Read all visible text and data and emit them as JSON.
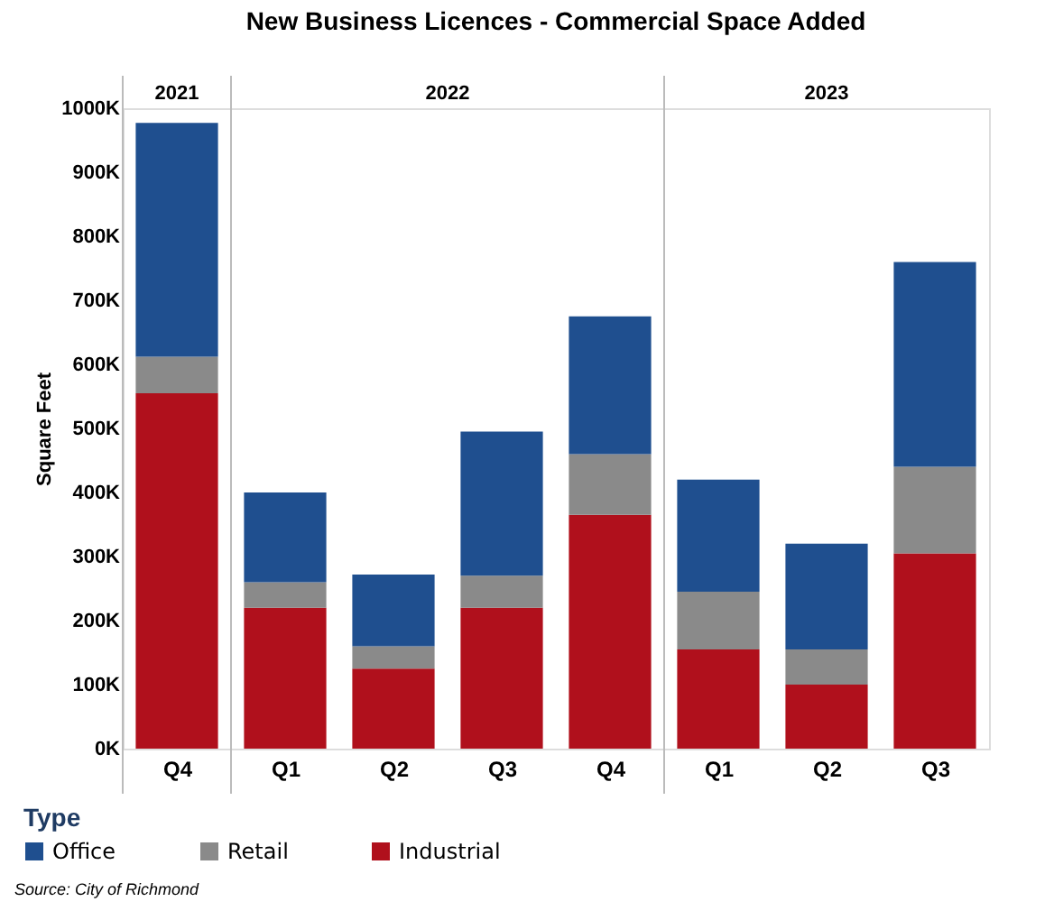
{
  "chart_data": {
    "type": "bar",
    "title": "New Business Licences - Commercial Space Added",
    "ylabel": "Square Feet",
    "legend_title": "Type",
    "categories": [
      "Q4",
      "Q1",
      "Q2",
      "Q3",
      "Q4",
      "Q1",
      "Q2",
      "Q3"
    ],
    "series": [
      {
        "name": "Industrial",
        "color": "#b0101c",
        "values": [
          555,
          220,
          125,
          220,
          365,
          155,
          100,
          305
        ]
      },
      {
        "name": "Retail",
        "color": "#8a8a8a",
        "values": [
          57,
          40,
          35,
          50,
          95,
          90,
          55,
          135
        ]
      },
      {
        "name": "Office",
        "color": "#1f4f8f",
        "values": [
          365,
          140,
          112,
          225,
          215,
          175,
          165,
          320
        ]
      }
    ],
    "stacked": true,
    "ylim": [
      0,
      1000
    ],
    "yticks": [
      {
        "value": 0,
        "label": "0K"
      },
      {
        "value": 100,
        "label": "100K"
      },
      {
        "value": 200,
        "label": "200K"
      },
      {
        "value": 300,
        "label": "300K"
      },
      {
        "value": 400,
        "label": "400K"
      },
      {
        "value": 500,
        "label": "500K"
      },
      {
        "value": 600,
        "label": "600K"
      },
      {
        "value": 700,
        "label": "700K"
      },
      {
        "value": 800,
        "label": "800K"
      },
      {
        "value": 900,
        "label": "900K"
      },
      {
        "value": 1000,
        "label": "1000K"
      }
    ],
    "grid": false,
    "legend": "bottom left",
    "annotations": [
      "2021",
      "2022",
      "2023",
      "Source: City of Richmond"
    ]
  }
}
